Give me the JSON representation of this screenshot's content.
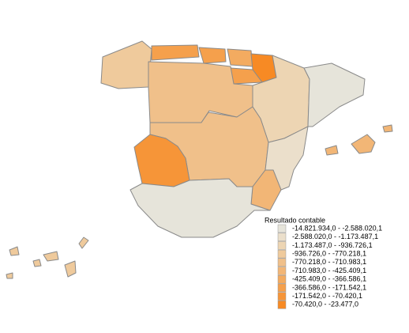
{
  "legend": {
    "title": "Resultado contable",
    "items": [
      {
        "label": "-14.821.934,0 - -2.588.020,1",
        "color": "#e6e4da"
      },
      {
        "label": "-2.588.020,0 - -1.173.487,1",
        "color": "#ebdfcb"
      },
      {
        "label": "-1.173.487,0 - -936.726,1",
        "color": "#edd5b3"
      },
      {
        "label": "-936.726,0 - -770.218,1",
        "color": "#efca9c"
      },
      {
        "label": "-770.218,0 - -710.983,1",
        "color": "#f0c08a"
      },
      {
        "label": "-710.983,0 - -425.409,1",
        "color": "#f2b676"
      },
      {
        "label": "-425.409,0 - -366.586,1",
        "color": "#f3ab60"
      },
      {
        "label": "-366.586,0 - -171.542,1",
        "color": "#f5a04c"
      },
      {
        "label": "-171.542,0 - -70.420,1",
        "color": "#f69538"
      },
      {
        "label": "-70.420,0 - -23.477,0",
        "color": "#f78a24"
      }
    ]
  }
}
